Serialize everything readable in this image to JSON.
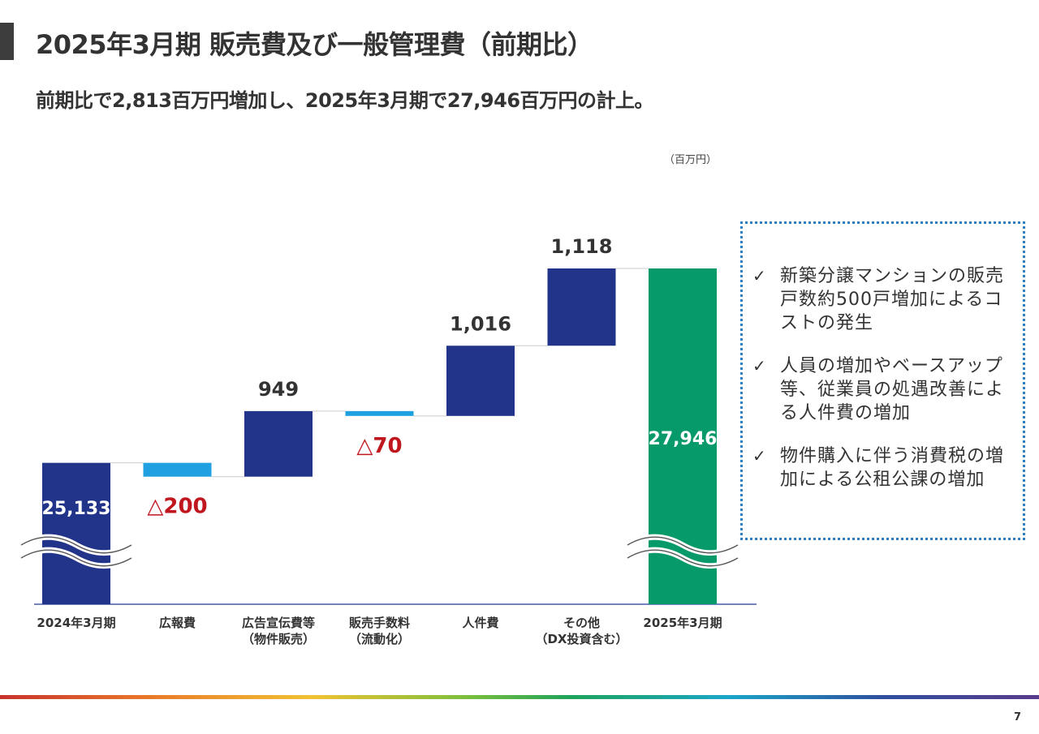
{
  "header": {
    "title": "2025年3月期 販売費及び一般管理費（前期比）",
    "subtitle": "前期比で2,813百万円増加し、2025年3月期で27,946百万円の計上。",
    "unit": "（百万円）"
  },
  "chart_data": {
    "type": "waterfall",
    "title": "2025年3月期 販売費及び一般管理費（前期比）",
    "unit": "百万円",
    "categories": [
      "2024年3月期",
      "広報費",
      "広告宣伝費等\n（物件販売）",
      "販売手数料\n（流動化）",
      "人件費",
      "その他\n（DX投資含む）",
      "2025年3月期"
    ],
    "steps": [
      {
        "category": "2024年3月期",
        "kind": "total",
        "value": 25133,
        "label": "25,133"
      },
      {
        "category": "広報費",
        "kind": "decrease",
        "value": -200,
        "label": "△200"
      },
      {
        "category": "広告宣伝費等（物件販売）",
        "kind": "increase",
        "value": 949,
        "label": "949"
      },
      {
        "category": "販売手数料（流動化）",
        "kind": "decrease",
        "value": -70,
        "label": "△70"
      },
      {
        "category": "人件費",
        "kind": "increase",
        "value": 1016,
        "label": "1,016"
      },
      {
        "category": "その他（DX投資含む）",
        "kind": "increase",
        "value": 1118,
        "label": "1,118"
      },
      {
        "category": "2025年3月期",
        "kind": "total",
        "value": 27946,
        "label": "27,946"
      }
    ],
    "axis_break": true,
    "colors": {
      "total_start": "#22348a",
      "increase": "#22348a",
      "decrease": "#1ea0e1",
      "total_end": "#06996a",
      "negative_label": "#c0161d"
    }
  },
  "notes": [
    "新築分譲マンションの販売戸数約500戸増加によるコストの発生",
    "人員の増加やベースアップ等、従業員の処遇改善による人件費の増加",
    "物件購入に伴う消費税の増加による公租公課の増加"
  ],
  "note_check": "✓",
  "footer": {
    "page": "7"
  }
}
